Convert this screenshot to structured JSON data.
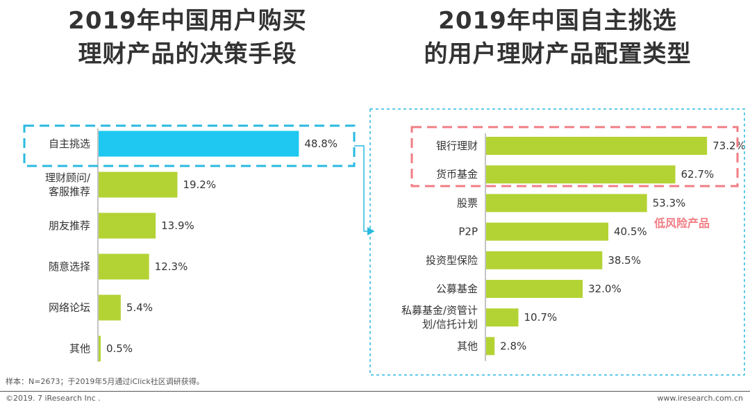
{
  "chart_data": [
    {
      "type": "bar",
      "orientation": "horizontal",
      "title": "2019年中国用户购买理财产品的决策手段",
      "categories": [
        "自主挑选",
        "理财顾问/客服推荐",
        "朋友推荐",
        "随意选择",
        "网络论坛",
        "其他"
      ],
      "category_lines": [
        [
          "自主挑选"
        ],
        [
          "理财顾问/",
          "客服推荐"
        ],
        [
          "朋友推荐"
        ],
        [
          "随意选择"
        ],
        [
          "网络论坛"
        ],
        [
          "其他"
        ]
      ],
      "values": [
        48.8,
        19.2,
        13.9,
        12.3,
        5.4,
        0.5
      ],
      "labels": [
        "48.8%",
        "19.2%",
        "13.9%",
        "12.3%",
        "5.4%",
        "0.5%"
      ],
      "unit": "%",
      "highlight_index": 0,
      "xlim": [
        0,
        55
      ],
      "colors": {
        "bar": "#b3d334",
        "highlight_bar": "#1ec8f0"
      }
    },
    {
      "type": "bar",
      "orientation": "horizontal",
      "title": "2019年中国自主挑选的用户理财产品配置类型",
      "categories": [
        "银行理财",
        "货币基金",
        "股票",
        "P2P",
        "投资型保险",
        "公募基金",
        "私募基金/资管计划/信托计划",
        "其他"
      ],
      "category_lines": [
        [
          "银行理财"
        ],
        [
          "货币基金"
        ],
        [
          "股票"
        ],
        [
          "P2P"
        ],
        [
          "投资型保险"
        ],
        [
          "公募基金"
        ],
        [
          "私募基金/资管计",
          "划/信托计划"
        ],
        [
          "其他"
        ]
      ],
      "values": [
        73.2,
        62.7,
        53.3,
        40.5,
        38.5,
        32.0,
        10.7,
        2.8
      ],
      "labels": [
        "73.2%",
        "62.7%",
        "53.3%",
        "40.5%",
        "38.5%",
        "32.0%",
        "10.7%",
        "2.8%"
      ],
      "unit": "%",
      "annotation": "低风险产品",
      "xlim": [
        0,
        78
      ],
      "colors": {
        "bar": "#b3d334",
        "annotation": "#f07d84",
        "connector": "#29b9e0"
      }
    }
  ],
  "footer": {
    "note": "样本：N=2673；于2019年5月通过iClick社区调研获得。",
    "copyright": "©2019. 7 iResearch Inc .",
    "website": "www.iresearch.com.cn"
  }
}
